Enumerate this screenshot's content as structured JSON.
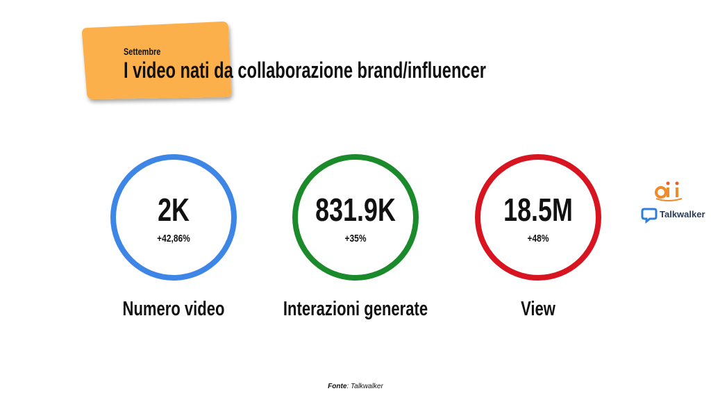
{
  "header": {
    "kicker": "Settembre",
    "title": "I video nati da collaborazione brand/influencer"
  },
  "kpis": [
    {
      "value": "2K",
      "change": "+42,86%",
      "label": "Numero video",
      "color": "#3d86e6"
    },
    {
      "value": "831.9K",
      "change": "+35%",
      "label": "Interazioni generate",
      "color": "#1a8a2a"
    },
    {
      "value": "18.5M",
      "change": "+48%",
      "label": "View",
      "color": "#d7141f"
    }
  ],
  "logos": {
    "talkwalker": "Talkwalker"
  },
  "source": {
    "label": "Fonte",
    "text": ": Talkwalker"
  }
}
